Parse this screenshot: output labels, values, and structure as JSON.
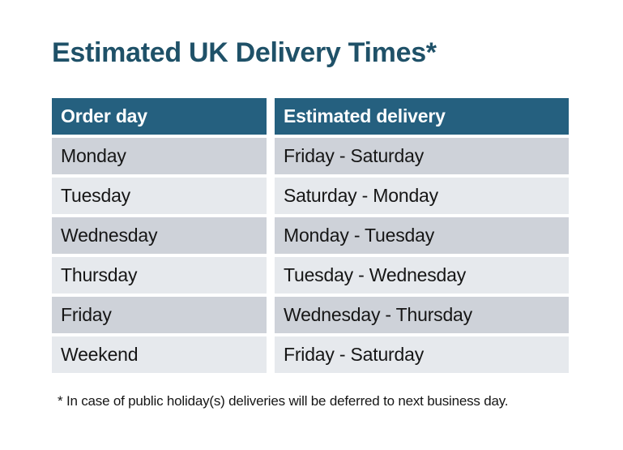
{
  "title": "Estimated UK Delivery Times*",
  "table": {
    "columns": [
      "Order day",
      "Estimated delivery"
    ],
    "rows": [
      {
        "order_day": "Monday",
        "estimated_delivery": "Friday - Saturday"
      },
      {
        "order_day": "Tuesday",
        "estimated_delivery": "Saturday - Monday"
      },
      {
        "order_day": "Wednesday",
        "estimated_delivery": "Monday - Tuesday"
      },
      {
        "order_day": "Thursday",
        "estimated_delivery": "Tuesday - Wednesday"
      },
      {
        "order_day": "Friday",
        "estimated_delivery": "Wednesday - Thursday"
      },
      {
        "order_day": "Weekend",
        "estimated_delivery": "Friday - Saturday"
      }
    ]
  },
  "footnote": "* In case of public holiday(s) deliveries will be deferred to next business day.",
  "colors": {
    "page_bg": "#ffffff",
    "title_text": "#1f5168",
    "header_bg": "#25607f",
    "header_text": "#ffffff",
    "row_odd_bg": "#ced2d9",
    "row_even_bg": "#e6e9ed",
    "body_text": "#161616"
  }
}
